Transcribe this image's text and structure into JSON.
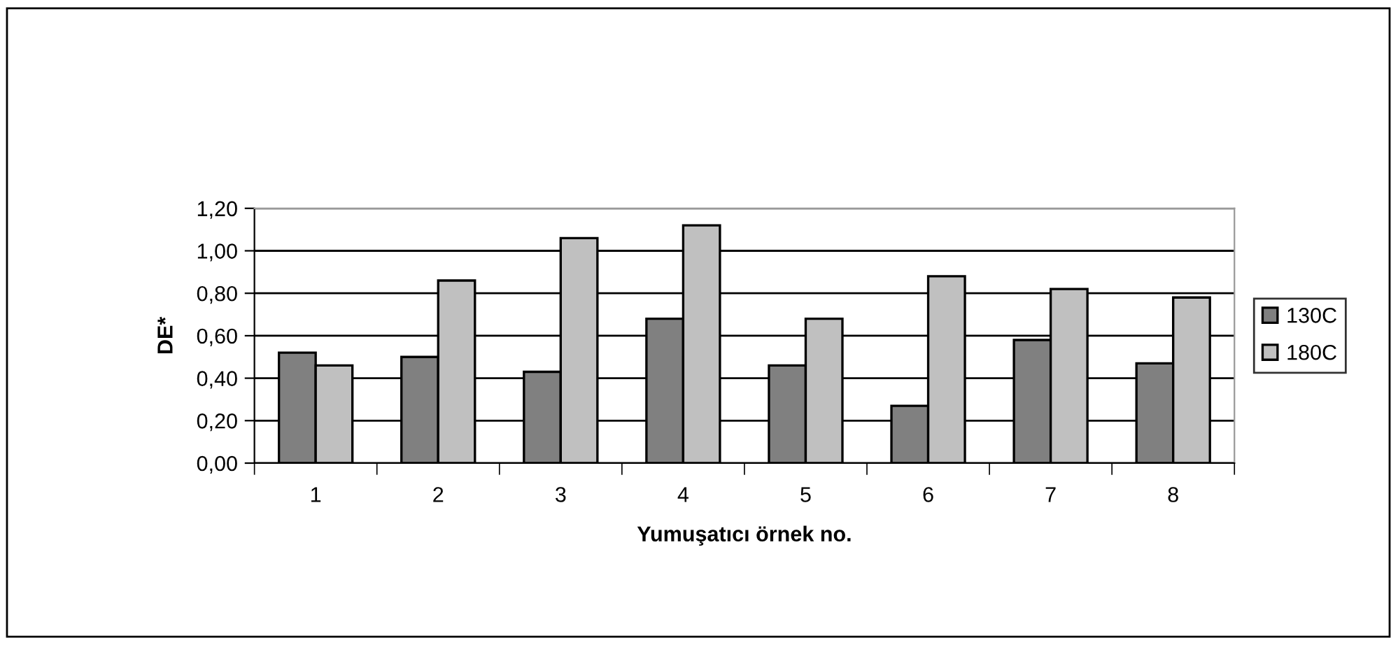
{
  "chart_data": {
    "type": "bar",
    "xlabel": "Yumuşatıcı örnek no.",
    "ylabel": "DE*",
    "categories": [
      "1",
      "2",
      "3",
      "4",
      "5",
      "6",
      "7",
      "8"
    ],
    "series": [
      {
        "name": "130C",
        "color": "#808080",
        "values": [
          0.52,
          0.5,
          0.43,
          0.68,
          0.46,
          0.27,
          0.58,
          0.47
        ]
      },
      {
        "name": "180C",
        "color": "#c0c0c0",
        "values": [
          0.46,
          0.86,
          1.06,
          1.12,
          0.68,
          0.88,
          0.82,
          0.78
        ]
      }
    ],
    "ylim": [
      0,
      1.2
    ],
    "yticks": [
      {
        "value": 0,
        "label": "0,00"
      },
      {
        "value": 0.2,
        "label": "0,20"
      },
      {
        "value": 0.4,
        "label": "0,40"
      },
      {
        "value": 0.6,
        "label": "0,60"
      },
      {
        "value": 0.8,
        "label": "0,80"
      },
      {
        "value": 1.0,
        "label": "1,00"
      },
      {
        "value": 1.2,
        "label": "1,20"
      }
    ],
    "grid": "y",
    "legend": "right"
  }
}
